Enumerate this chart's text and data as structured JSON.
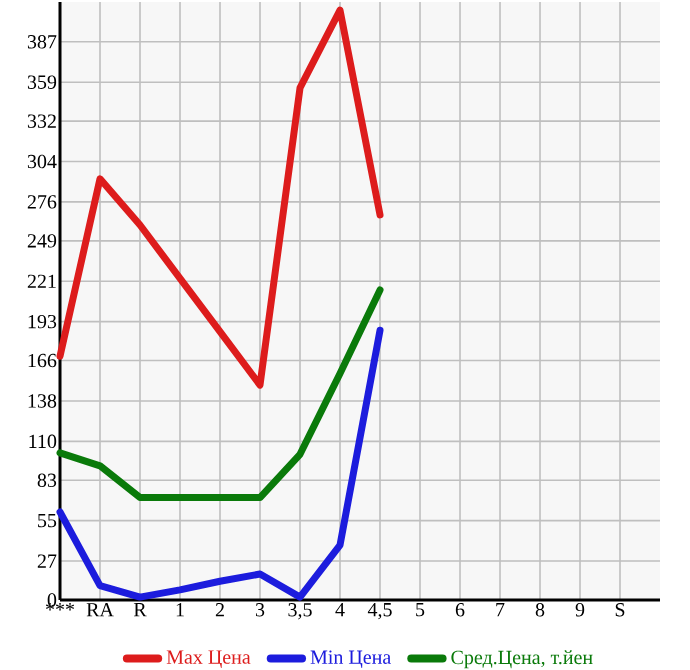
{
  "chart_data": {
    "type": "line",
    "categories": [
      "***",
      "RA",
      "R",
      "1",
      "2",
      "3",
      "3,5",
      "4",
      "4,5",
      "5",
      "6",
      "7",
      "8",
      "9",
      "S"
    ],
    "series": [
      {
        "name": "Max Цена",
        "color": "#dd1c1c",
        "values": [
          169,
          292,
          260,
          223,
          186,
          149,
          355,
          409,
          267,
          null,
          null,
          null,
          null,
          null,
          null
        ]
      },
      {
        "name": "Min Цена",
        "color": "#1c1cdd",
        "values": [
          61,
          10,
          2,
          7,
          13,
          18,
          2,
          38,
          187,
          null,
          null,
          null,
          null,
          null,
          null
        ]
      },
      {
        "name": "Сред.Цена, т.йен",
        "color": "#0a7a0a",
        "values": [
          102,
          93,
          71,
          71,
          71,
          71,
          101,
          157,
          215,
          null,
          null,
          null,
          null,
          null,
          null
        ]
      }
    ],
    "ylim": [
      0,
      414.6
    ],
    "yticks": [
      0,
      27,
      55,
      83,
      110,
      138,
      166,
      193,
      221,
      249,
      276,
      304,
      332,
      359,
      387
    ],
    "grid": true,
    "legend": "bottom",
    "marker": "none",
    "line_style": "solid"
  }
}
